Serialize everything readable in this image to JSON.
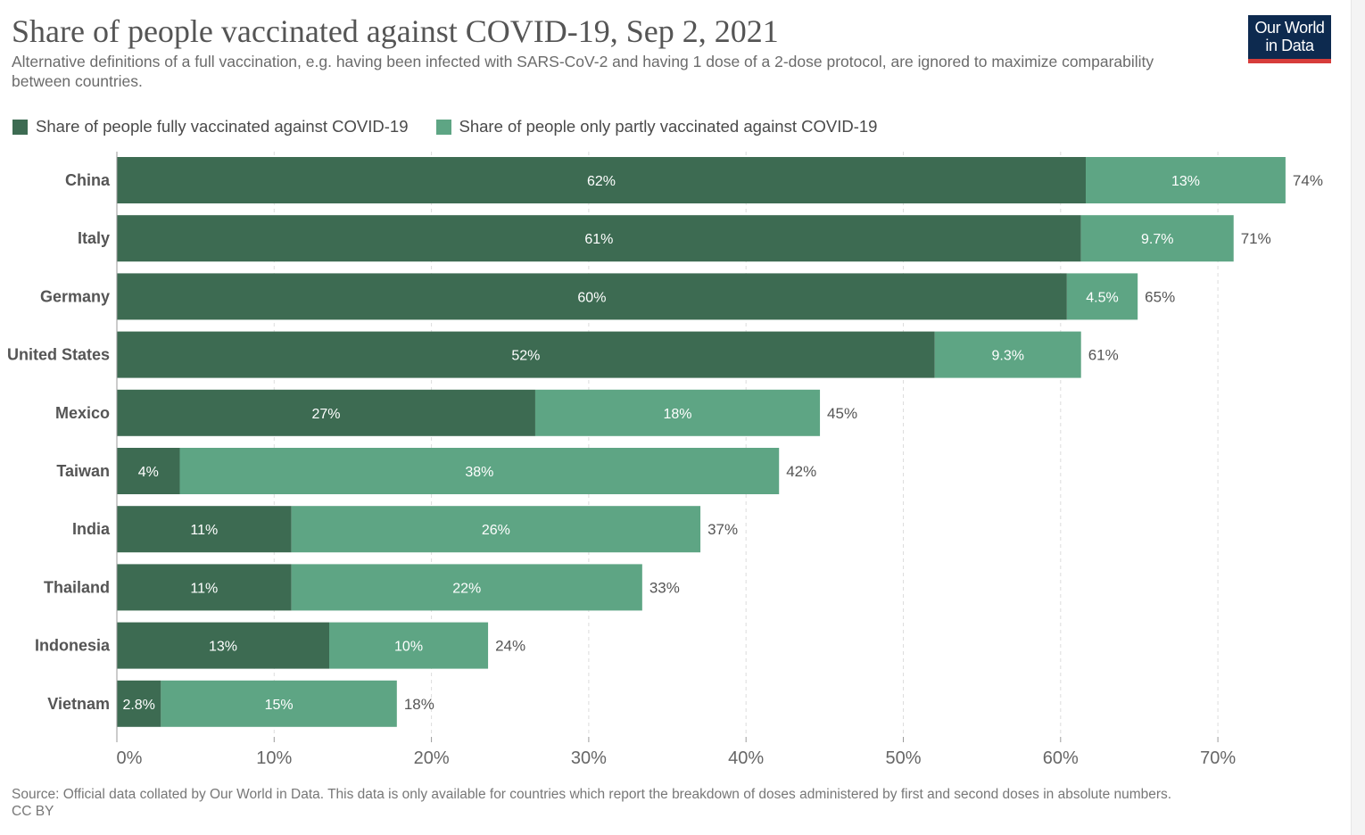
{
  "header": {
    "title": "Share of people vaccinated against COVID-19, Sep 2, 2021",
    "subtitle": "Alternative definitions of a full vaccination, e.g. having been infected with SARS-CoV-2 and having 1 dose of a 2-dose protocol, are ignored to maximize comparability between countries."
  },
  "logo": {
    "line1": "Our World",
    "line2": "in Data",
    "bg_color": "#0d2a4f",
    "accent_color": "#d73d3b"
  },
  "legend": {
    "items": [
      {
        "label": "Share of people fully vaccinated against COVID-19",
        "color": "#3d6b52"
      },
      {
        "label": "Share of people only partly vaccinated against COVID-19",
        "color": "#5ea584"
      }
    ]
  },
  "chart_data": {
    "type": "bar",
    "orientation": "horizontal",
    "stacked": true,
    "categories": [
      "China",
      "Italy",
      "Germany",
      "United States",
      "Mexico",
      "Taiwan",
      "India",
      "Thailand",
      "Indonesia",
      "Vietnam"
    ],
    "series": [
      {
        "name": "Share of people fully vaccinated against COVID-19",
        "color": "#3d6b52",
        "values": [
          61.6,
          61.3,
          60.4,
          52.0,
          26.6,
          4.0,
          11.1,
          11.1,
          13.5,
          2.8
        ],
        "labels": [
          "62%",
          "61%",
          "60%",
          "52%",
          "27%",
          "4%",
          "11%",
          "11%",
          "13%",
          "2.8%"
        ]
      },
      {
        "name": "Share of people only partly vaccinated against COVID-19",
        "color": "#5ea584",
        "values": [
          12.7,
          9.7,
          4.5,
          9.3,
          18.1,
          38.1,
          26.0,
          22.3,
          10.1,
          15.0
        ],
        "labels": [
          "13%",
          "9.7%",
          "4.5%",
          "9.3%",
          "18%",
          "38%",
          "26%",
          "22%",
          "10%",
          "15%"
        ]
      }
    ],
    "totals": [
      "74%",
      "71%",
      "65%",
      "61%",
      "45%",
      "42%",
      "37%",
      "33%",
      "24%",
      "18%"
    ],
    "x_ticks": [
      0,
      10,
      20,
      30,
      40,
      50,
      60,
      70
    ],
    "x_tick_labels": [
      "0%",
      "10%",
      "20%",
      "30%",
      "40%",
      "50%",
      "60%",
      "70%"
    ],
    "xlim": [
      0,
      78
    ],
    "grid": "vertical-dashed",
    "legend_position": "top-left"
  },
  "footer": {
    "source": "Source: Official data collated by Our World in Data. This data is only available for countries which report the breakdown of doses administered by first and second doses in absolute numbers.",
    "license": "CC BY"
  }
}
